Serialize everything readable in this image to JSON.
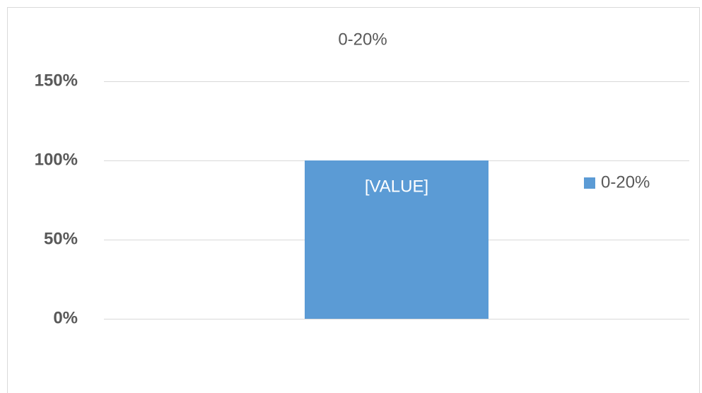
{
  "chart_data": {
    "type": "bar",
    "title": "0-20%",
    "categories": [
      null
    ],
    "series": [
      {
        "name": "0-20%",
        "color": "#5b9bd5",
        "values": [
          100
        ],
        "value_labels": [
          "[VALUE]"
        ]
      }
    ],
    "ylim": [
      0,
      150
    ],
    "yticks": [
      {
        "value": 0,
        "label": "0%"
      },
      {
        "value": 50,
        "label": "50%"
      },
      {
        "value": 100,
        "label": "100%"
      },
      {
        "value": 150,
        "label": "150%"
      }
    ],
    "grid": true,
    "legend": "right"
  }
}
